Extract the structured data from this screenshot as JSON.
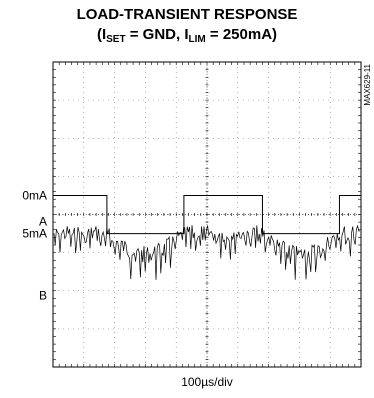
{
  "chart_data": {
    "type": "line",
    "title_line1": "LOAD-TRANSIENT RESPONSE",
    "title_line2": {
      "open": "(I",
      "sub1": "SET",
      "mid": " = GND, I",
      "sub2": "LIM",
      "close": " = 250mA)"
    },
    "x_scale": "100µs/div",
    "x_divisions": 10,
    "y_divisions": 8,
    "side_note": "MAX629-11",
    "channels": [
      {
        "name": "A",
        "levels": [
          "0mA",
          "5mA"
        ],
        "level_values_divisions": [
          4.5,
          3.5
        ],
        "transitions_at_div": [
          1.75,
          4.25,
          6.8,
          9.3
        ],
        "start_level_index": 0
      },
      {
        "name": "B",
        "baseline_div": 1.8,
        "ripple_divisions": 1.0,
        "description_pattern": "noisy ripple with sags at load steps"
      }
    ],
    "grid": true
  }
}
